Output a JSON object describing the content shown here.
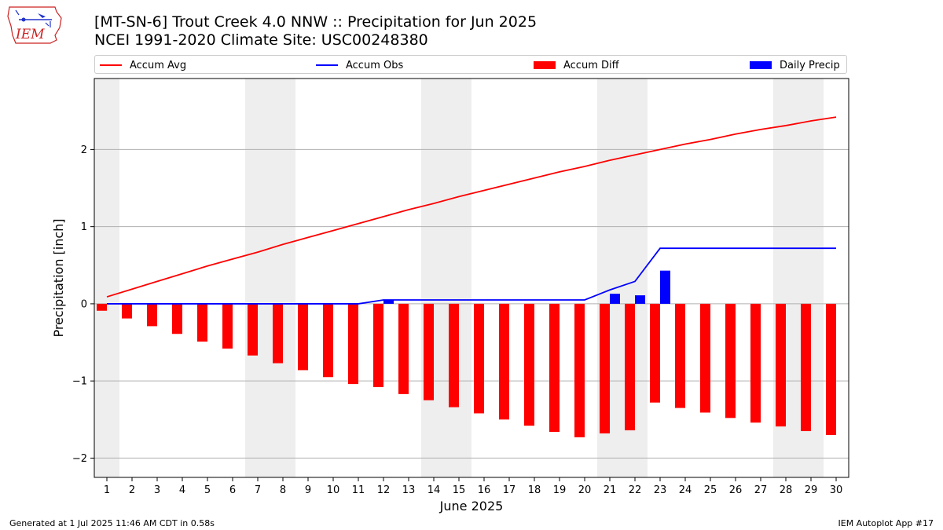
{
  "header": {
    "title_line1": "[MT-SN-6] Trout Creek 4.0 NNW :: Precipitation for Jun 2025",
    "title_line2": "NCEI 1991-2020 Climate Site: USC00248380"
  },
  "logo": {
    "text": "IEM",
    "color": "#cc2222",
    "icon": "iem-iowa-logo"
  },
  "legend": {
    "items": [
      {
        "label": "Accum Avg",
        "color": "#ff0000",
        "kind": "line"
      },
      {
        "label": "Accum Obs",
        "color": "#0000ff",
        "kind": "line"
      },
      {
        "label": "Accum Diff",
        "color": "#ff0000",
        "kind": "bar"
      },
      {
        "label": "Daily Precip",
        "color": "#0000ff",
        "kind": "bar"
      }
    ]
  },
  "footer": {
    "left": "Generated at 1 Jul 2025 11:46 AM CDT in 0.58s",
    "right": "IEM Autoplot App #17"
  },
  "chart_data": {
    "type": "bar",
    "xlabel": "June 2025",
    "ylabel": "Precipitation [inch]",
    "ylim": [
      -2.25,
      2.92
    ],
    "yticks": [
      -2,
      -1,
      0,
      1,
      2
    ],
    "grid": "horizontal",
    "legend_placement": "top",
    "weekend_shading_days": [
      1,
      7,
      8,
      14,
      15,
      21,
      22,
      28,
      29
    ],
    "categories": [
      "1",
      "2",
      "3",
      "4",
      "5",
      "6",
      "7",
      "8",
      "9",
      "10",
      "11",
      "12",
      "13",
      "14",
      "15",
      "16",
      "17",
      "18",
      "19",
      "20",
      "21",
      "22",
      "23",
      "24",
      "25",
      "26",
      "27",
      "28",
      "29",
      "30"
    ],
    "series": [
      {
        "name": "Accum Avg",
        "type": "line",
        "color": "#ff0000",
        "values": [
          0.09,
          0.19,
          0.29,
          0.39,
          0.49,
          0.58,
          0.67,
          0.77,
          0.86,
          0.95,
          1.04,
          1.13,
          1.22,
          1.3,
          1.39,
          1.47,
          1.55,
          1.63,
          1.71,
          1.78,
          1.86,
          1.93,
          2.0,
          2.07,
          2.13,
          2.2,
          2.26,
          2.31,
          2.37,
          2.42
        ]
      },
      {
        "name": "Accum Obs",
        "type": "line",
        "color": "#0000ff",
        "values": [
          0,
          0,
          0,
          0,
          0,
          0,
          0,
          0,
          0,
          0,
          0,
          0.05,
          0.05,
          0.05,
          0.05,
          0.05,
          0.05,
          0.05,
          0.05,
          0.05,
          0.18,
          0.29,
          0.72,
          0.72,
          0.72,
          0.72,
          0.72,
          0.72,
          0.72,
          0.72
        ]
      },
      {
        "name": "Accum Diff",
        "type": "bar",
        "color": "#ff0000",
        "values": [
          -0.09,
          -0.19,
          -0.29,
          -0.39,
          -0.49,
          -0.58,
          -0.67,
          -0.77,
          -0.86,
          -0.95,
          -1.04,
          -1.08,
          -1.17,
          -1.25,
          -1.34,
          -1.42,
          -1.5,
          -1.58,
          -1.66,
          -1.73,
          -1.68,
          -1.64,
          -1.28,
          -1.35,
          -1.41,
          -1.48,
          -1.54,
          -1.59,
          -1.65,
          -1.7
        ]
      },
      {
        "name": "Daily Precip",
        "type": "bar",
        "color": "#0000ff",
        "values": [
          0,
          0,
          0,
          0,
          0,
          0,
          0,
          0,
          0,
          0,
          0,
          0.05,
          0,
          0,
          0,
          0,
          0,
          0,
          0,
          0,
          0.13,
          0.11,
          0.43,
          0,
          0,
          0,
          0,
          0,
          0,
          0
        ]
      }
    ]
  }
}
